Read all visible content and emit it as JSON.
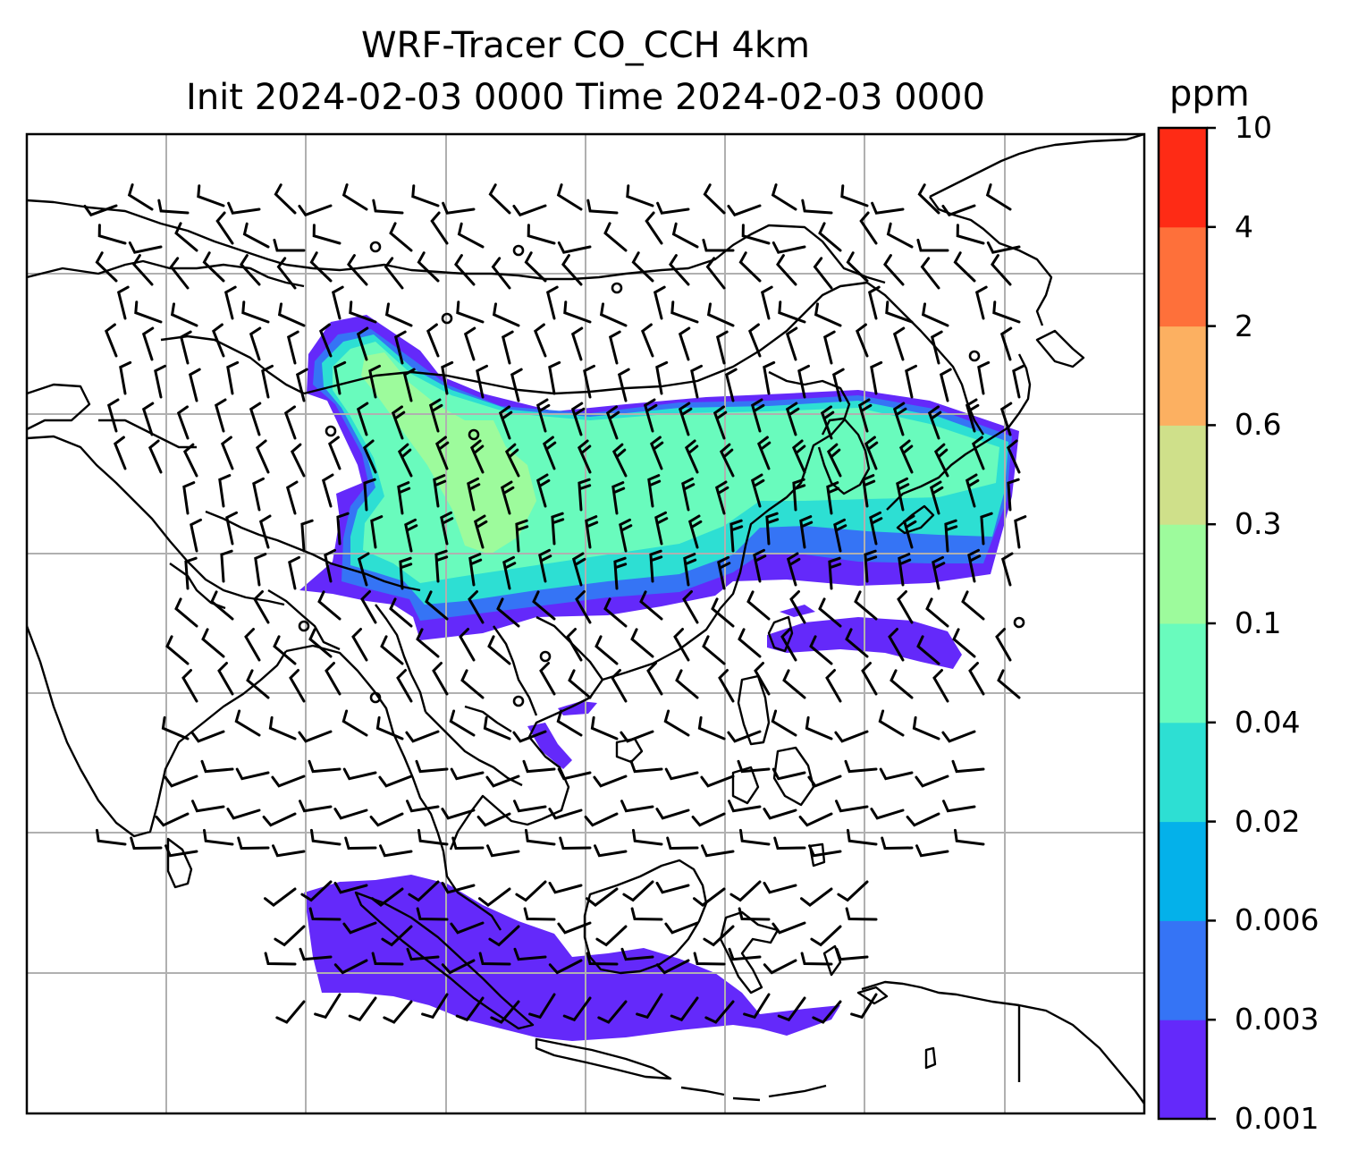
{
  "title": {
    "line1": "WRF-Tracer CO_CCH 4km",
    "line2": "Init 2024-02-03 0000 Time 2024-02-03 0000"
  },
  "colorbar": {
    "unit": "ppm",
    "levels": [
      "0.001",
      "0.003",
      "0.006",
      "0.02",
      "0.04",
      "0.1",
      "0.3",
      "0.6",
      "2",
      "4",
      "10"
    ],
    "colors": [
      "#6429fa",
      "#3574f5",
      "#04b1ea",
      "#2ddfd3",
      "#69fbbd",
      "#9dfb9c",
      "#cfe08a",
      "#fcb061",
      "#fe703a",
      "#fe2b15"
    ]
  },
  "map": {
    "features": [
      "coastlines",
      "country-borders",
      "graticule",
      "co-tracer-concentration",
      "wind-barbs"
    ]
  }
}
